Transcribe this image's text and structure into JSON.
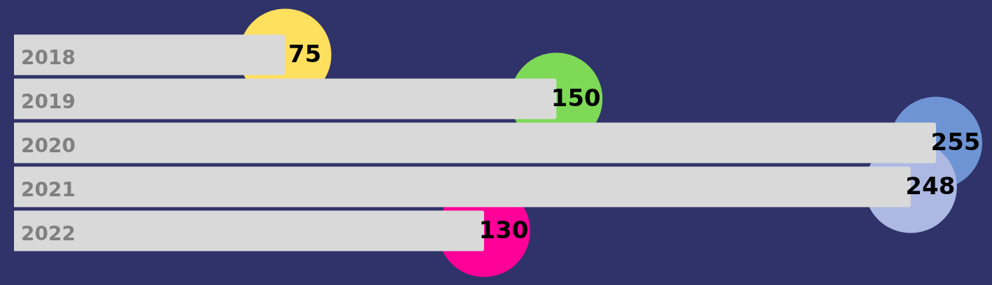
{
  "chart_data": {
    "type": "bar",
    "orientation": "horizontal",
    "categories": [
      "2018",
      "2019",
      "2020",
      "2021",
      "2022"
    ],
    "series": [
      {
        "color": "#d9d9d9",
        "values": [
          75,
          150,
          255,
          248,
          130
        ]
      },
      {
        "type": "scatter",
        "colors": [
          "#ffdf5e",
          "#7ed957",
          "#6f94d4",
          "#adb9e3",
          "#ff0099"
        ],
        "values": [
          75,
          150,
          255,
          248,
          130
        ],
        "value_labels": [
          "75",
          "150",
          "255",
          "248",
          "130"
        ]
      }
    ],
    "marker": "circle",
    "legend": false,
    "tick_labels": "y"
  }
}
